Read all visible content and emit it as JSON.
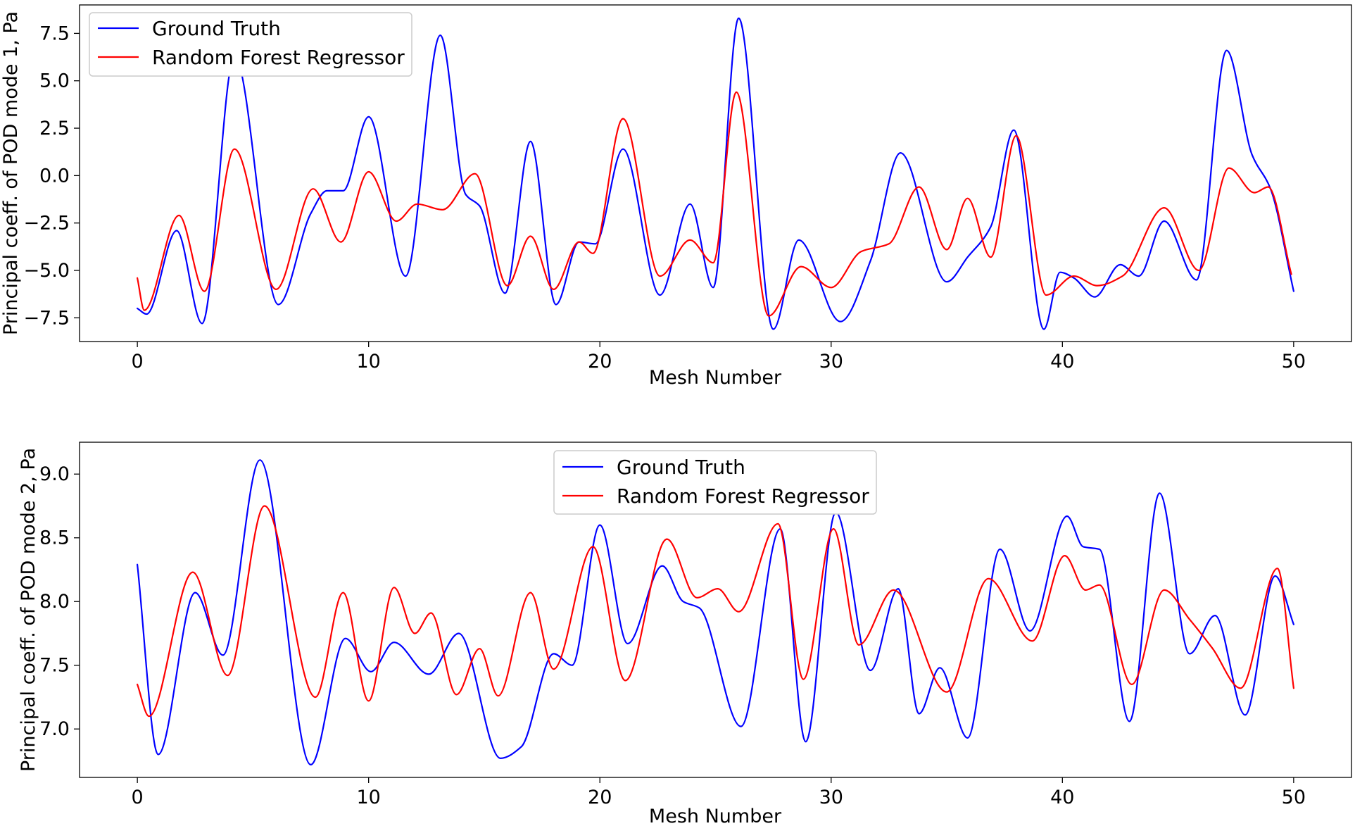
{
  "chart_data": [
    {
      "type": "line",
      "title": "",
      "xlabel": "Mesh Number",
      "ylabel": "Principal coeff. of POD mode 1, Pa",
      "xlim": [
        -2.5,
        52.5
      ],
      "ylim": [
        -8.75,
        9.0
      ],
      "xticks": [
        0,
        10,
        20,
        30,
        40,
        50
      ],
      "xtick_labels": [
        "0",
        "10",
        "20",
        "30",
        "40",
        "50"
      ],
      "yticks": [
        -7.5,
        -5.0,
        -2.5,
        0.0,
        2.5,
        5.0,
        7.5
      ],
      "ytick_labels": [
        "−7.5",
        "−5.0",
        "−2.5",
        "0.0",
        "2.5",
        "5.0",
        "7.5"
      ],
      "grid": false,
      "legend": "upper left",
      "series": [
        {
          "name": "Ground Truth",
          "color": "#0000ff",
          "points": [
            [
              0,
              -7.0
            ],
            [
              0.4,
              -7.3
            ],
            [
              1.7,
              -2.9
            ],
            [
              2.8,
              -7.8
            ],
            [
              4.2,
              6.3
            ],
            [
              6.1,
              -6.8
            ],
            [
              7.5,
              -2.0
            ],
            [
              8.2,
              -0.8
            ],
            [
              8.9,
              -0.8
            ],
            [
              10.0,
              3.1
            ],
            [
              11.6,
              -5.3
            ],
            [
              13.1,
              7.4
            ],
            [
              14.2,
              -1.0
            ],
            [
              14.8,
              -1.6
            ],
            [
              15.9,
              -6.2
            ],
            [
              17.0,
              1.8
            ],
            [
              18.1,
              -6.8
            ],
            [
              19.1,
              -3.5
            ],
            [
              19.8,
              -3.6
            ],
            [
              21.0,
              1.4
            ],
            [
              22.6,
              -6.3
            ],
            [
              23.9,
              -1.5
            ],
            [
              24.9,
              -5.9
            ],
            [
              26.0,
              8.3
            ],
            [
              27.5,
              -8.1
            ],
            [
              28.6,
              -3.4
            ],
            [
              30.4,
              -7.7
            ],
            [
              31.7,
              -4.5
            ],
            [
              33.0,
              1.2
            ],
            [
              35.0,
              -5.6
            ],
            [
              35.9,
              -4.3
            ],
            [
              36.9,
              -2.7
            ],
            [
              37.9,
              2.4
            ],
            [
              39.2,
              -8.1
            ],
            [
              39.9,
              -5.1
            ],
            [
              40.5,
              -5.4
            ],
            [
              41.4,
              -6.4
            ],
            [
              42.5,
              -4.7
            ],
            [
              43.3,
              -5.3
            ],
            [
              44.4,
              -2.4
            ],
            [
              45.8,
              -5.5
            ],
            [
              47.1,
              6.6
            ],
            [
              48.2,
              1.1
            ],
            [
              49.0,
              -0.7
            ],
            [
              50.0,
              -6.1
            ]
          ]
        },
        {
          "name": "Random Forest Regressor",
          "color": "#ff0000",
          "points": [
            [
              0,
              -5.4
            ],
            [
              0.3,
              -7.1
            ],
            [
              1.8,
              -2.1
            ],
            [
              2.9,
              -6.1
            ],
            [
              4.2,
              1.4
            ],
            [
              6.0,
              -6.0
            ],
            [
              7.6,
              -0.7
            ],
            [
              8.8,
              -3.5
            ],
            [
              10.0,
              0.2
            ],
            [
              11.2,
              -2.4
            ],
            [
              12.1,
              -1.5
            ],
            [
              13.2,
              -1.8
            ],
            [
              14.6,
              0.1
            ],
            [
              16.0,
              -5.8
            ],
            [
              17.0,
              -3.2
            ],
            [
              18.0,
              -6.0
            ],
            [
              19.1,
              -3.5
            ],
            [
              19.7,
              -4.1
            ],
            [
              21.0,
              3.0
            ],
            [
              22.6,
              -5.3
            ],
            [
              23.9,
              -3.4
            ],
            [
              24.9,
              -4.6
            ],
            [
              25.9,
              4.4
            ],
            [
              27.3,
              -7.4
            ],
            [
              28.7,
              -4.8
            ],
            [
              30.0,
              -5.9
            ],
            [
              31.3,
              -4.0
            ],
            [
              32.5,
              -3.6
            ],
            [
              33.8,
              -0.6
            ],
            [
              35.0,
              -3.9
            ],
            [
              35.9,
              -1.2
            ],
            [
              36.9,
              -4.3
            ],
            [
              38.0,
              2.1
            ],
            [
              39.3,
              -6.3
            ],
            [
              40.5,
              -5.3
            ],
            [
              41.5,
              -5.8
            ],
            [
              42.6,
              -5.3
            ],
            [
              44.4,
              -1.7
            ],
            [
              45.9,
              -5.0
            ],
            [
              47.2,
              0.4
            ],
            [
              48.3,
              -0.9
            ],
            [
              48.9,
              -0.6
            ],
            [
              49.9,
              -5.2
            ]
          ]
        }
      ]
    },
    {
      "type": "line",
      "title": "",
      "xlabel": "Mesh Number",
      "ylabel": "Principal coeff. of POD mode 2, Pa",
      "xlim": [
        -2.5,
        52.5
      ],
      "ylim": [
        6.62,
        9.25
      ],
      "xticks": [
        0,
        10,
        20,
        30,
        40,
        50
      ],
      "xtick_labels": [
        "0",
        "10",
        "20",
        "30",
        "40",
        "50"
      ],
      "yticks": [
        7.0,
        7.5,
        8.0,
        8.5,
        9.0
      ],
      "ytick_labels": [
        "7.0",
        "7.5",
        "8.0",
        "8.5",
        "9.0"
      ],
      "grid": false,
      "legend": "upper center",
      "series": [
        {
          "name": "Ground Truth",
          "color": "#0000ff",
          "points": [
            [
              0,
              8.29
            ],
            [
              0.9,
              6.8
            ],
            [
              2.5,
              8.07
            ],
            [
              3.7,
              7.58
            ],
            [
              5.3,
              9.11
            ],
            [
              7.5,
              6.72
            ],
            [
              9.0,
              7.71
            ],
            [
              10.1,
              7.45
            ],
            [
              11.1,
              7.68
            ],
            [
              12.6,
              7.43
            ],
            [
              13.9,
              7.75
            ],
            [
              15.7,
              6.77
            ],
            [
              16.6,
              6.86
            ],
            [
              18.0,
              7.59
            ],
            [
              18.8,
              7.5
            ],
            [
              20.0,
              8.6
            ],
            [
              21.2,
              7.67
            ],
            [
              22.7,
              8.28
            ],
            [
              23.6,
              8.0
            ],
            [
              24.3,
              7.95
            ],
            [
              26.1,
              7.02
            ],
            [
              27.8,
              8.57
            ],
            [
              28.9,
              6.9
            ],
            [
              30.2,
              8.7
            ],
            [
              31.7,
              7.46
            ],
            [
              32.9,
              8.1
            ],
            [
              33.8,
              7.12
            ],
            [
              34.7,
              7.48
            ],
            [
              35.9,
              6.93
            ],
            [
              37.3,
              8.41
            ],
            [
              38.6,
              7.77
            ],
            [
              40.2,
              8.67
            ],
            [
              40.9,
              8.43
            ],
            [
              41.6,
              8.41
            ],
            [
              42.9,
              7.06
            ],
            [
              44.2,
              8.85
            ],
            [
              45.5,
              7.59
            ],
            [
              46.6,
              7.89
            ],
            [
              47.9,
              7.11
            ],
            [
              49.2,
              8.2
            ],
            [
              50.0,
              7.82
            ]
          ]
        },
        {
          "name": "Random Forest Regressor",
          "color": "#ff0000",
          "points": [
            [
              0,
              7.35
            ],
            [
              0.5,
              7.1
            ],
            [
              2.4,
              8.23
            ],
            [
              3.9,
              7.42
            ],
            [
              5.5,
              8.75
            ],
            [
              7.7,
              7.25
            ],
            [
              8.9,
              8.07
            ],
            [
              10.0,
              7.22
            ],
            [
              11.1,
              8.11
            ],
            [
              12.0,
              7.75
            ],
            [
              12.7,
              7.91
            ],
            [
              13.8,
              7.27
            ],
            [
              14.8,
              7.63
            ],
            [
              15.6,
              7.26
            ],
            [
              17.0,
              8.07
            ],
            [
              18.0,
              7.47
            ],
            [
              19.7,
              8.43
            ],
            [
              21.1,
              7.38
            ],
            [
              22.9,
              8.49
            ],
            [
              24.2,
              8.03
            ],
            [
              25.1,
              8.1
            ],
            [
              26.0,
              7.92
            ],
            [
              27.7,
              8.61
            ],
            [
              28.8,
              7.39
            ],
            [
              30.1,
              8.57
            ],
            [
              31.2,
              7.66
            ],
            [
              32.7,
              8.09
            ],
            [
              35.0,
              7.29
            ],
            [
              36.8,
              8.18
            ],
            [
              38.7,
              7.69
            ],
            [
              40.1,
              8.36
            ],
            [
              41.0,
              8.09
            ],
            [
              41.6,
              8.13
            ],
            [
              43.0,
              7.35
            ],
            [
              44.4,
              8.09
            ],
            [
              45.5,
              7.86
            ],
            [
              46.5,
              7.63
            ],
            [
              47.7,
              7.32
            ],
            [
              49.3,
              8.26
            ],
            [
              50.0,
              7.32
            ]
          ]
        }
      ]
    }
  ]
}
